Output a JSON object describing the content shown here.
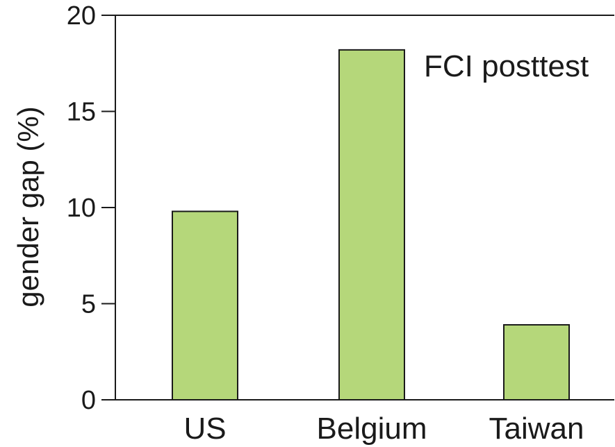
{
  "chart_data": {
    "type": "bar",
    "categories": [
      "US",
      "Belgium",
      "Taiwan"
    ],
    "values": [
      9.8,
      18.2,
      3.9
    ],
    "title": "",
    "xlabel": "",
    "ylabel": "gender gap (%)",
    "ylim": [
      0,
      20
    ],
    "yticks": [
      0,
      5,
      10,
      15,
      20
    ],
    "annotation": "FCI posttest",
    "legend": "none",
    "grid": false,
    "bar_color": "#b5d77a",
    "bar_edge_color": "#1a1a1a"
  }
}
